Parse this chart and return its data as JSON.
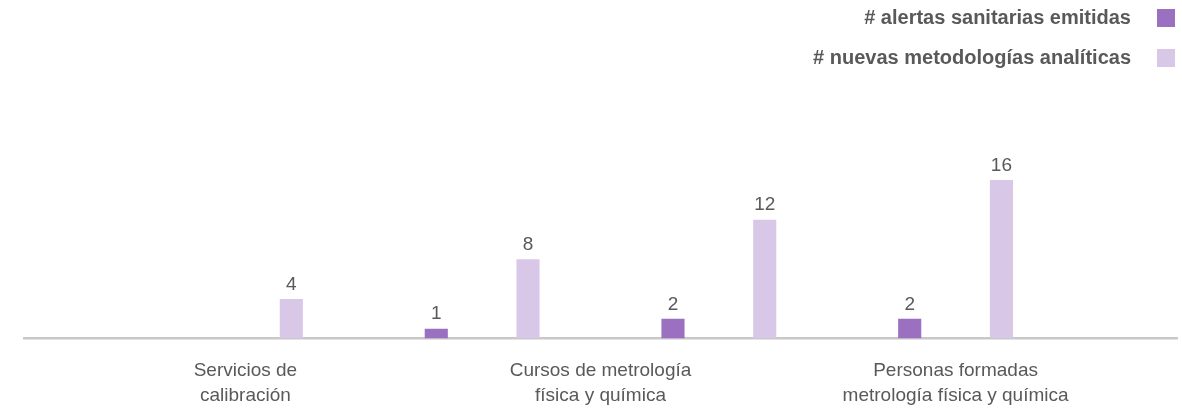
{
  "chart_data": {
    "type": "bar",
    "categories": [
      "Servicios de calibración",
      null,
      null,
      "Cursos de metrología física y química",
      null,
      null,
      "Personas formadas metrología física y química"
    ],
    "series": [
      {
        "name": "# alertas sanitarias emitidas",
        "color": "#9b70c1",
        "values": [
          null,
          null,
          1,
          null,
          2,
          null,
          2
        ]
      },
      {
        "name": "# nuevas metodologías analíticas",
        "color": "#d9c7e8",
        "values": [
          4,
          null,
          8,
          null,
          12,
          null,
          16
        ]
      }
    ],
    "data_labels": true,
    "legend": "top right",
    "tick_labels": "x"
  }
}
